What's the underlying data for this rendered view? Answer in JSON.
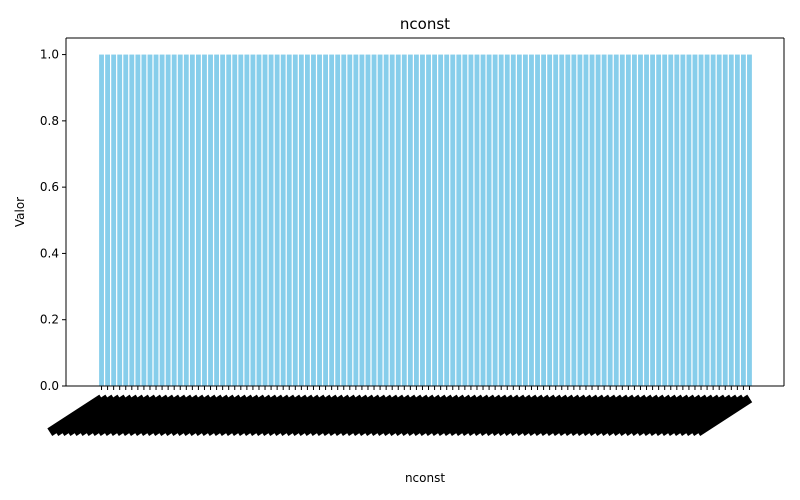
{
  "chart_data": {
    "type": "bar",
    "title": "nconst",
    "xlabel": "nconst",
    "ylabel": "Valor",
    "ylim": [
      0,
      1.05
    ],
    "yticks": [
      "0.0",
      "0.2",
      "0.4",
      "0.6",
      "0.8",
      "1.0"
    ],
    "bar_count": 108,
    "bar_value": 1.0,
    "bar_color": "#87ceeb",
    "xtick_rotation": "45 degrees, right-aligned",
    "xtick_labels_note": "category labels are illegible (overlapping); only rendered as dense black text",
    "grid": false,
    "legend": "none"
  }
}
